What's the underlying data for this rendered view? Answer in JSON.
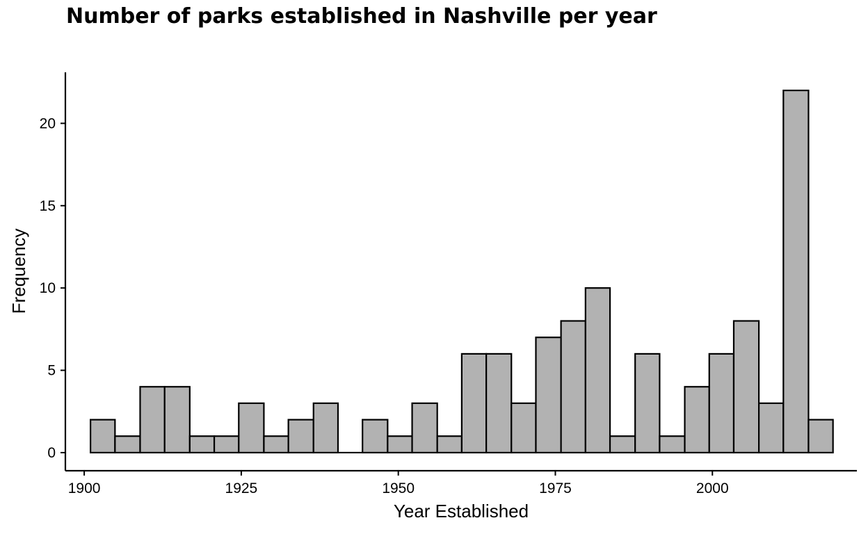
{
  "chart_data": {
    "type": "bar",
    "title": "Number of parks established in Nashville per year",
    "xlabel": "Year Established",
    "ylabel": "Frequency",
    "x_ticks": [
      1900,
      1925,
      1950,
      1975,
      2000
    ],
    "y_ticks": [
      0,
      5,
      10,
      15,
      20
    ],
    "xlim": [
      1897,
      2023
    ],
    "ylim": [
      -1.1,
      23.1
    ],
    "grid": false,
    "bar_fill": "#b2b2b2",
    "bar_stroke": "#000000",
    "bins": [
      {
        "start": 1901.0,
        "end": 1904.9,
        "count": 2
      },
      {
        "start": 1904.9,
        "end": 1908.9,
        "count": 1
      },
      {
        "start": 1908.9,
        "end": 1912.8,
        "count": 4
      },
      {
        "start": 1912.8,
        "end": 1916.8,
        "count": 4
      },
      {
        "start": 1916.8,
        "end": 1920.7,
        "count": 1
      },
      {
        "start": 1920.7,
        "end": 1924.6,
        "count": 1
      },
      {
        "start": 1924.6,
        "end": 1928.6,
        "count": 3
      },
      {
        "start": 1928.6,
        "end": 1932.5,
        "count": 1
      },
      {
        "start": 1932.5,
        "end": 1936.5,
        "count": 2
      },
      {
        "start": 1936.5,
        "end": 1940.4,
        "count": 3
      },
      {
        "start": 1940.4,
        "end": 1944.3,
        "count": 0
      },
      {
        "start": 1944.3,
        "end": 1948.3,
        "count": 2
      },
      {
        "start": 1948.3,
        "end": 1952.2,
        "count": 1
      },
      {
        "start": 1952.2,
        "end": 1956.2,
        "count": 3
      },
      {
        "start": 1956.2,
        "end": 1960.1,
        "count": 1
      },
      {
        "start": 1960.1,
        "end": 1964.0,
        "count": 6
      },
      {
        "start": 1964.0,
        "end": 1968.0,
        "count": 6
      },
      {
        "start": 1968.0,
        "end": 1971.9,
        "count": 3
      },
      {
        "start": 1971.9,
        "end": 1975.9,
        "count": 7
      },
      {
        "start": 1975.9,
        "end": 1979.8,
        "count": 8
      },
      {
        "start": 1979.8,
        "end": 1983.7,
        "count": 10
      },
      {
        "start": 1983.7,
        "end": 1987.7,
        "count": 1
      },
      {
        "start": 1987.7,
        "end": 1991.6,
        "count": 6
      },
      {
        "start": 1991.6,
        "end": 1995.6,
        "count": 1
      },
      {
        "start": 1995.6,
        "end": 1999.5,
        "count": 4
      },
      {
        "start": 1999.5,
        "end": 2003.4,
        "count": 6
      },
      {
        "start": 2003.4,
        "end": 2007.4,
        "count": 8
      },
      {
        "start": 2007.4,
        "end": 2011.3,
        "count": 3
      },
      {
        "start": 2011.3,
        "end": 2015.3,
        "count": 22
      },
      {
        "start": 2015.3,
        "end": 2019.2,
        "count": 2
      }
    ]
  }
}
